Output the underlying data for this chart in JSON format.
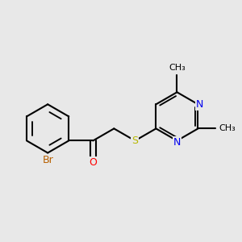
{
  "background_color": "#e8e8e8",
  "bond_color": "#000000",
  "atom_colors": {
    "Br": "#b86000",
    "O": "#ff0000",
    "S": "#b8b800",
    "N": "#0000ee",
    "C": "#000000"
  },
  "bond_width": 1.5,
  "bl": 0.48
}
